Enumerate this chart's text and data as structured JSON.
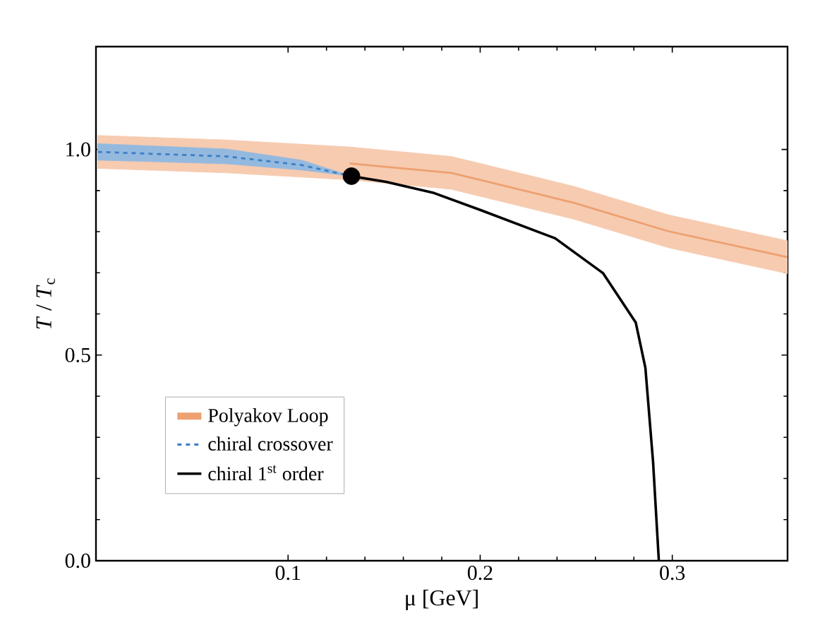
{
  "chart_data": {
    "type": "line",
    "xlabel": "μ [GeV]",
    "ylabel": "*T* / *T*$_{c}$",
    "xlim": [
      0,
      0.36
    ],
    "ylim": [
      0,
      1.25
    ],
    "xticks": [
      0.1,
      0.2,
      0.3
    ],
    "yticks": [
      {
        "value": 0,
        "label": "0.0"
      },
      {
        "value": 0.5,
        "label": "0.5"
      },
      {
        "value": 1.0,
        "label": "1.0"
      }
    ],
    "legend": "bottom left",
    "grid": false,
    "series": [
      {
        "name": "Polyakov Loop",
        "color": "#eea070",
        "x": [
          0.001,
          0.068,
          0.132,
          0.185,
          0.249,
          0.298,
          0.36
        ],
        "values": [
          null,
          null,
          0.966,
          0.943,
          0.87,
          0.801,
          0.738
        ],
        "lower": [
          0.954,
          0.943,
          0.926,
          0.903,
          0.83,
          0.761,
          0.698
        ],
        "upper": [
          1.034,
          1.023,
          1.006,
          0.983,
          0.91,
          0.841,
          0.778
        ]
      },
      {
        "name": "chiral crossover",
        "color": "#3d7fc4",
        "line_style": "dashed",
        "x": [
          0.001,
          0.068,
          0.107,
          0.133
        ],
        "values": [
          0.994,
          0.983,
          0.962,
          0.935
        ],
        "lower": [
          0.974,
          0.965,
          0.95,
          0.935
        ],
        "upper": [
          1.014,
          1.001,
          0.974,
          0.935
        ]
      },
      {
        "name": "chiral 1$^{st}$ order",
        "color": "#000000",
        "line_style": "solid",
        "x": [
          0.133,
          0.151,
          0.176,
          0.2,
          0.239,
          0.264,
          0.281,
          0.286,
          0.29,
          0.293
        ],
        "values": [
          0.935,
          0.921,
          0.894,
          0.853,
          0.784,
          0.699,
          0.579,
          0.469,
          0.24,
          0.0
        ]
      },
      {
        "type": "scatter",
        "marker": "circle",
        "color": "#000000",
        "x": [
          0.133
        ],
        "values": [
          0.935
        ]
      }
    ]
  }
}
